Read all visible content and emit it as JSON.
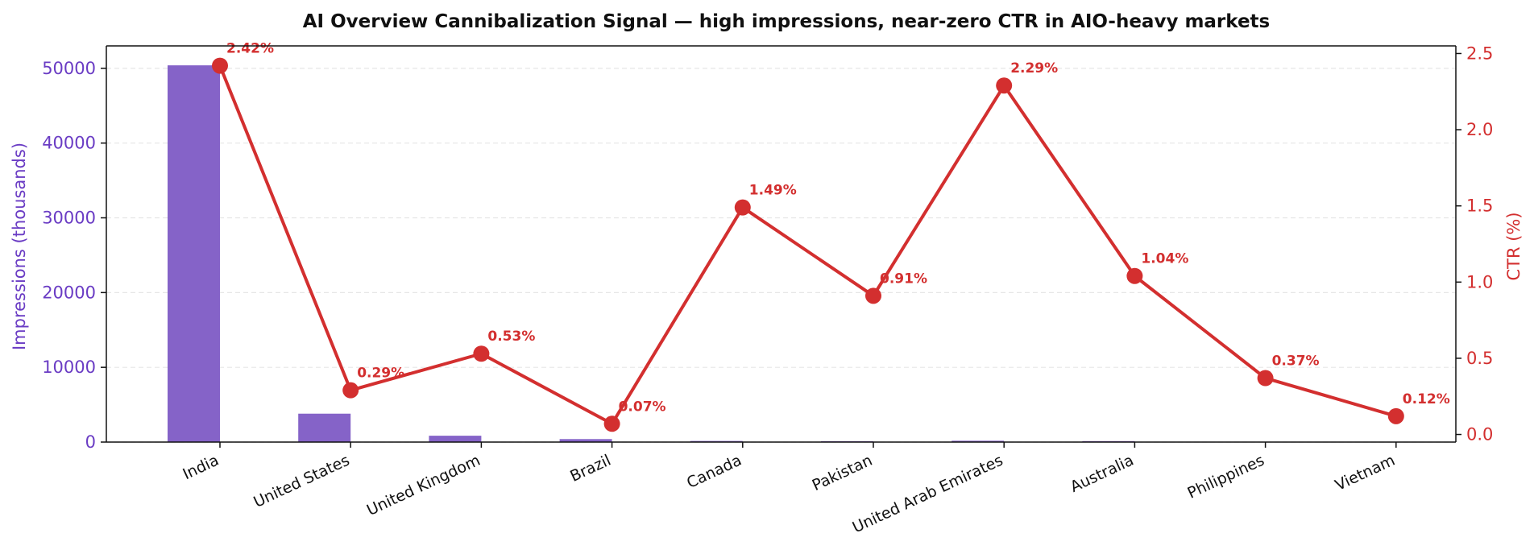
{
  "chart_data": {
    "type": "bar",
    "title": "AI Overview Cannibalization Signal — high impressions, near-zero CTR in AIO-heavy markets",
    "categories": [
      "India",
      "United States",
      "United Kingdom",
      "Brazil",
      "Canada",
      "Pakistan",
      "United Arab Emirates",
      "Australia",
      "Philippines",
      "Vietnam"
    ],
    "ylabel": "Impressions (thousands)",
    "y2label": "CTR (%)",
    "ylim": [
      0,
      53000
    ],
    "y2lim": [
      -0.05,
      2.55
    ],
    "yticks": [
      0,
      10000,
      20000,
      30000,
      40000,
      50000
    ],
    "y2ticks": [
      "0.0",
      "0.5",
      "1.0",
      "1.5",
      "2.0",
      "2.5"
    ],
    "grid": true,
    "series": [
      {
        "type": "bar",
        "axis": "left",
        "color": "#8563c8",
        "values": [
          50400,
          3800,
          850,
          400,
          150,
          120,
          180,
          130,
          40,
          20
        ]
      },
      {
        "type": "line",
        "axis": "right",
        "color": "#d32f2f",
        "values": [
          2.42,
          0.29,
          0.53,
          0.07,
          1.49,
          0.91,
          2.29,
          1.04,
          0.37,
          0.12
        ],
        "labels": [
          "2.42%",
          "0.29%",
          "0.53%",
          "0.07%",
          "1.49%",
          "0.91%",
          "2.29%",
          "1.04%",
          "0.37%",
          "0.12%"
        ]
      }
    ]
  }
}
